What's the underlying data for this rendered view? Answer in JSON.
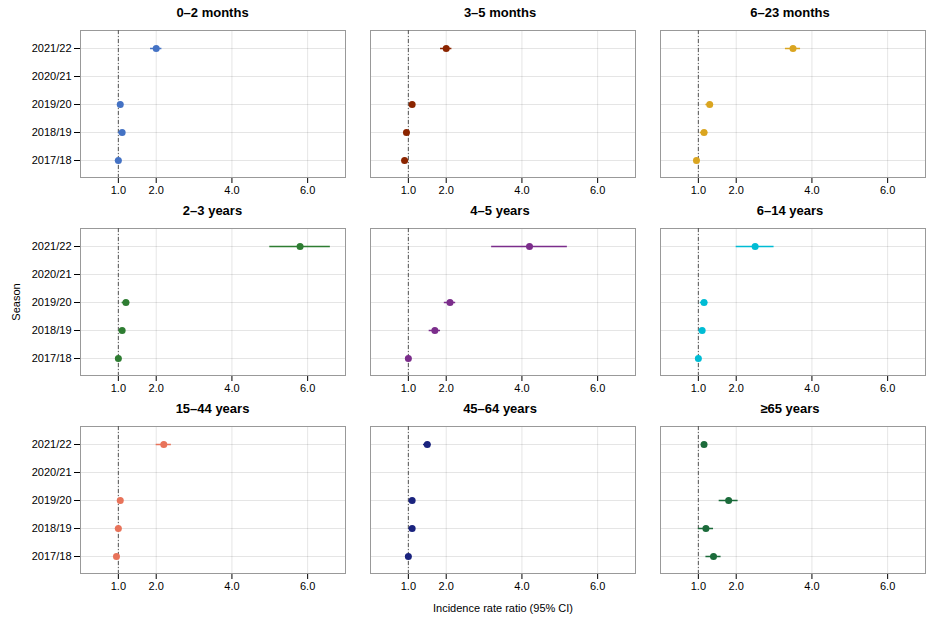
{
  "chart_data": [
    {
      "type": "errorbar",
      "title": "0–2 months",
      "color": "#4472C4",
      "categories": [
        "2021/22",
        "2020/21",
        "2019/20",
        "2018/19",
        "2017/18"
      ],
      "values": [
        2.0,
        null,
        1.05,
        1.1,
        1.0
      ],
      "ci_low": [
        1.85,
        null,
        0.98,
        1.0,
        0.92
      ],
      "ci_high": [
        2.15,
        null,
        1.12,
        1.18,
        1.08
      ],
      "xlim": [
        0,
        7
      ],
      "xticks": [
        1,
        2,
        4,
        6
      ],
      "reference_x": 1.0,
      "grid": true
    },
    {
      "type": "errorbar",
      "title": "3–5 months",
      "color": "#8B2500",
      "categories": [
        "2021/22",
        "2020/21",
        "2019/20",
        "2018/19",
        "2017/18"
      ],
      "values": [
        2.0,
        null,
        1.1,
        0.95,
        0.9
      ],
      "ci_low": [
        1.85,
        null,
        1.05,
        0.88,
        null
      ],
      "ci_high": [
        2.15,
        null,
        1.15,
        1.02,
        null
      ],
      "xlim": [
        0,
        7
      ],
      "xticks": [
        1,
        2,
        4,
        6
      ],
      "reference_x": 1.0,
      "grid": true,
      "tick_labels": "x"
    },
    {
      "type": "errorbar",
      "title": "6–23 months",
      "color": "#DAA520",
      "categories": [
        "2021/22",
        "2020/21",
        "2019/20",
        "2018/19",
        "2017/18"
      ],
      "values": [
        3.5,
        null,
        1.3,
        1.15,
        0.95
      ],
      "ci_low": [
        3.3,
        null,
        1.2,
        1.05,
        null
      ],
      "ci_high": [
        3.7,
        null,
        1.4,
        1.25,
        null
      ],
      "xlim": [
        0,
        7
      ],
      "xticks": [
        1,
        2,
        4,
        6
      ],
      "reference_x": 1.0,
      "grid": true,
      "tick_labels": "x"
    },
    {
      "type": "errorbar",
      "title": "2–3 years",
      "color": "#2E7D32",
      "ylabel": "Season",
      "categories": [
        "2021/22",
        "2020/21",
        "2019/20",
        "2018/19",
        "2017/18"
      ],
      "values": [
        5.8,
        null,
        1.2,
        1.1,
        1.0
      ],
      "ci_low": [
        5.0,
        null,
        1.1,
        1.02,
        null
      ],
      "ci_high": [
        6.6,
        null,
        1.3,
        1.18,
        null
      ],
      "xlim": [
        0,
        7
      ],
      "xticks": [
        1,
        2,
        4,
        6
      ],
      "reference_x": 1.0,
      "grid": true
    },
    {
      "type": "errorbar",
      "title": "4–5 years",
      "color": "#7B2D8B",
      "categories": [
        "2021/22",
        "2020/21",
        "2019/20",
        "2018/19",
        "2017/18"
      ],
      "values": [
        4.2,
        null,
        2.1,
        1.7,
        1.0
      ],
      "ci_low": [
        3.2,
        null,
        1.95,
        1.55,
        null
      ],
      "ci_high": [
        5.2,
        null,
        2.25,
        1.85,
        null
      ],
      "xlim": [
        0,
        7
      ],
      "xticks": [
        1,
        2,
        4,
        6
      ],
      "reference_x": 1.0,
      "grid": true,
      "tick_labels": "x"
    },
    {
      "type": "errorbar",
      "title": "6–14 years",
      "color": "#00BCD4",
      "categories": [
        "2021/22",
        "2020/21",
        "2019/20",
        "2018/19",
        "2017/18"
      ],
      "values": [
        2.5,
        null,
        1.15,
        1.1,
        1.0
      ],
      "ci_low": [
        2.0,
        null,
        1.05,
        1.02,
        null
      ],
      "ci_high": [
        3.0,
        null,
        1.25,
        1.18,
        null
      ],
      "xlim": [
        0,
        7
      ],
      "xticks": [
        1,
        2,
        4,
        6
      ],
      "reference_x": 1.0,
      "grid": true,
      "tick_labels": "x"
    },
    {
      "type": "errorbar",
      "title": "15–44 years",
      "color": "#E8735A",
      "categories": [
        "2021/22",
        "2020/21",
        "2019/20",
        "2018/19",
        "2017/18"
      ],
      "values": [
        2.2,
        null,
        1.05,
        1.0,
        0.95
      ],
      "ci_low": [
        2.0,
        null,
        0.98,
        0.92,
        null
      ],
      "ci_high": [
        2.4,
        null,
        1.12,
        1.08,
        null
      ],
      "xlim": [
        0,
        7
      ],
      "xticks": [
        1,
        2,
        4,
        6
      ],
      "reference_x": 1.0,
      "grid": true
    },
    {
      "type": "errorbar",
      "title": "45–64 years",
      "color": "#1A237E",
      "xlabel": "Incidence rate ratio (95% CI)",
      "categories": [
        "2021/22",
        "2020/21",
        "2019/20",
        "2018/19",
        "2017/18"
      ],
      "values": [
        1.5,
        null,
        1.1,
        1.1,
        1.0
      ],
      "ci_low": [
        1.4,
        null,
        1.02,
        1.02,
        null
      ],
      "ci_high": [
        1.6,
        null,
        1.18,
        1.18,
        null
      ],
      "xlim": [
        0,
        7
      ],
      "xticks": [
        1,
        2,
        4,
        6
      ],
      "reference_x": 1.0,
      "grid": true,
      "tick_labels": "x"
    },
    {
      "type": "errorbar",
      "title": "≥65 years",
      "color": "#1B6B3A",
      "categories": [
        "2021/22",
        "2020/21",
        "2019/20",
        "2018/19",
        "2017/18"
      ],
      "values": [
        1.15,
        null,
        1.8,
        1.2,
        1.4
      ],
      "ci_low": [
        1.08,
        null,
        1.55,
        1.0,
        1.2
      ],
      "ci_high": [
        1.22,
        null,
        2.05,
        1.4,
        1.6
      ],
      "xlim": [
        0,
        7
      ],
      "xticks": [
        1,
        2,
        4,
        6
      ],
      "reference_x": 1.0,
      "grid": true,
      "tick_labels": "x"
    }
  ]
}
